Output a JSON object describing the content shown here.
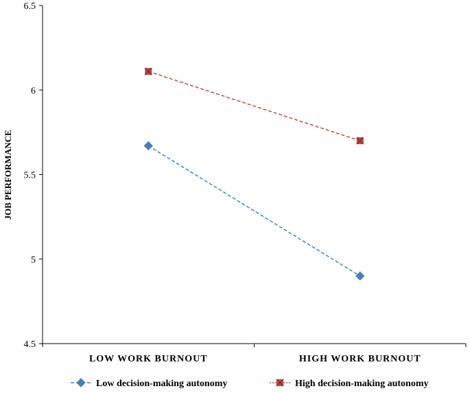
{
  "chart_data": {
    "type": "line",
    "categories": [
      "LOW WORK BURNOUT",
      "HIGH WORK BURNOUT"
    ],
    "ylabel": "JOB PERFORMANCE",
    "ylim": [
      4.5,
      6.5
    ],
    "yticks": [
      "4.5",
      "5",
      "5.5",
      "6",
      "6.5"
    ],
    "grid": false,
    "legend_position": "bottom",
    "series": [
      {
        "name": "Low decision-making autonomy",
        "values": [
          5.67,
          4.9
        ],
        "color": "#4a7ebb",
        "marker": "diamond",
        "dash": "dashed"
      },
      {
        "name": "High decision-making autonomy",
        "values": [
          6.11,
          5.7
        ],
        "color": "#be4b48",
        "marker": "x-square",
        "dash": "dashed"
      }
    ]
  }
}
